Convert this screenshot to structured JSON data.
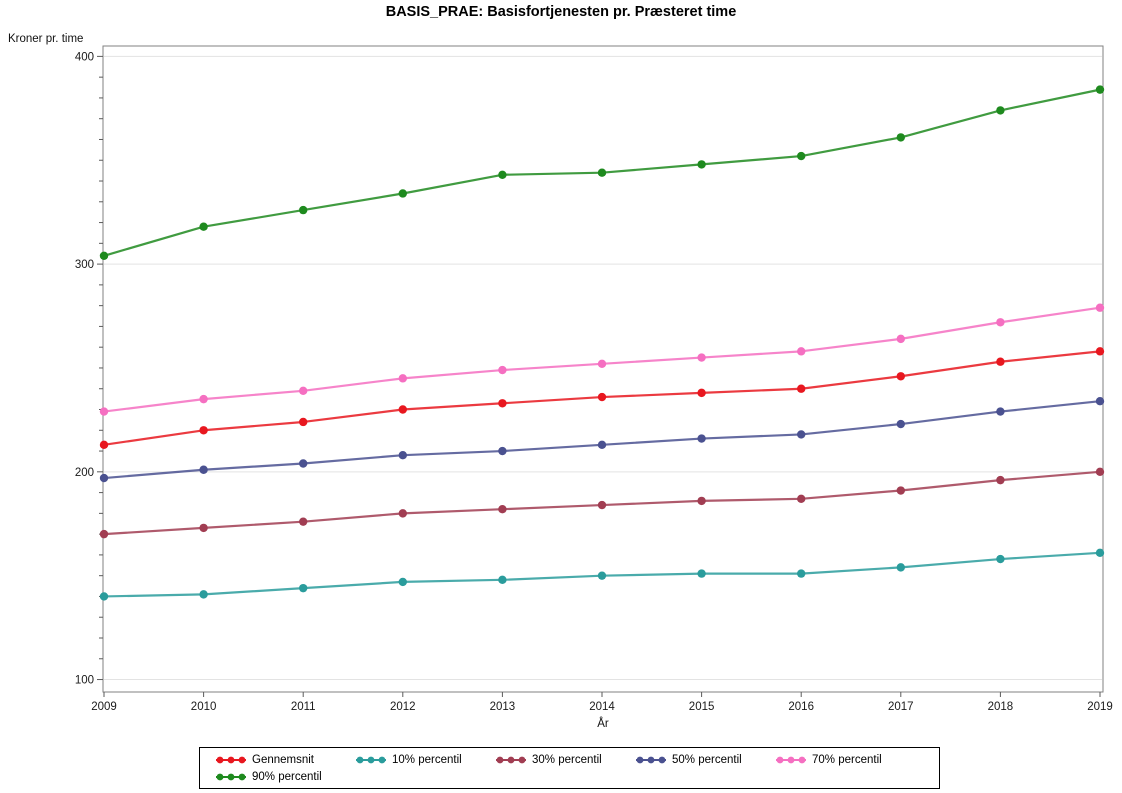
{
  "chart_data": {
    "type": "line",
    "title": "BASIS_PRAE: Basisfortjenesten pr. Præsteret time",
    "xlabel": "År",
    "ylabel": "Kroner pr. time",
    "x": [
      2009,
      2010,
      2011,
      2012,
      2013,
      2014,
      2015,
      2016,
      2017,
      2018,
      2019
    ],
    "ylim": [
      94,
      405
    ],
    "yticks_major": [
      100,
      200,
      300,
      400
    ],
    "ytick_minor_step": 10,
    "grid": "horizontal-major-only",
    "legend_position": "bottom",
    "marker": "filled-circle",
    "series": [
      {
        "name": "Gennemsnit",
        "color": "#e8171f",
        "values": [
          213,
          220,
          224,
          230,
          233,
          236,
          238,
          240,
          246,
          253,
          258
        ]
      },
      {
        "name": "10% percentil",
        "color": "#2a9c9c",
        "values": [
          140,
          141,
          144,
          147,
          148,
          150,
          151,
          151,
          154,
          158,
          161
        ]
      },
      {
        "name": "30% percentil",
        "color": "#a13d52",
        "values": [
          170,
          173,
          176,
          180,
          182,
          184,
          186,
          187,
          191,
          196,
          200
        ]
      },
      {
        "name": "50% percentil",
        "color": "#4a5190",
        "values": [
          197,
          201,
          204,
          208,
          210,
          213,
          216,
          218,
          223,
          229,
          234
        ]
      },
      {
        "name": "70% percentil",
        "color": "#f56fc1",
        "values": [
          229,
          235,
          239,
          245,
          249,
          252,
          255,
          258,
          264,
          272,
          279
        ]
      },
      {
        "name": "90% percentil",
        "color": "#1e8a1e",
        "values": [
          304,
          318,
          326,
          334,
          343,
          344,
          348,
          352,
          361,
          374,
          384
        ]
      }
    ],
    "style_colors": {
      "plot_frame": "#828282",
      "gridline": "#e3e3e3",
      "tick": "#5a5a5a",
      "tick_label": "#1a1a1a",
      "background": "#ffffff"
    }
  }
}
